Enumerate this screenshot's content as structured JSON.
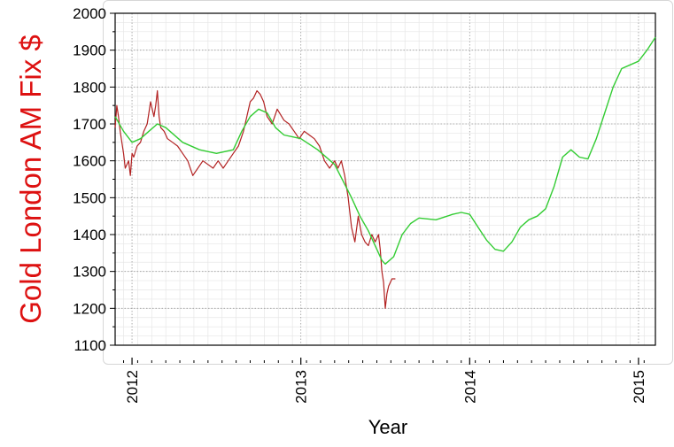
{
  "chart_data": {
    "type": "line",
    "xlabel": "Year",
    "ylabel": "Gold London AM Fix $",
    "xlim": [
      2011.9,
      2015.1
    ],
    "ylim": [
      1100,
      2000
    ],
    "yticks": [
      1100,
      1200,
      1300,
      1400,
      1500,
      1600,
      1700,
      1800,
      1900,
      2000
    ],
    "xticks": [
      2012,
      2013,
      2014,
      2015
    ],
    "xtick_labels": [
      "2012",
      "2013",
      "2014",
      "2015"
    ],
    "grid": true,
    "colors": {
      "actual": "#b22222",
      "forecast": "#33cc33",
      "ylabel": "#dd1111",
      "grid_major": "#9a9a9a",
      "grid_minor": "#e6e6e6",
      "card_border": "#d6d6d6"
    },
    "series": [
      {
        "key": "actual",
        "x": [
          2011.9,
          2011.91,
          2011.92,
          2011.93,
          2011.95,
          2011.96,
          2011.98,
          2011.99,
          2012.0,
          2012.01,
          2012.03,
          2012.05,
          2012.07,
          2012.09,
          2012.11,
          2012.13,
          2012.14,
          2012.15,
          2012.16,
          2012.17,
          2012.19,
          2012.21,
          2012.24,
          2012.27,
          2012.3,
          2012.33,
          2012.36,
          2012.39,
          2012.42,
          2012.45,
          2012.48,
          2012.51,
          2012.54,
          2012.57,
          2012.6,
          2012.63,
          2012.66,
          2012.68,
          2012.7,
          2012.72,
          2012.74,
          2012.76,
          2012.78,
          2012.8,
          2012.83,
          2012.86,
          2012.9,
          2012.93,
          2012.96,
          2012.99,
          2013.02,
          2013.05,
          2013.08,
          2013.11,
          2013.14,
          2013.17,
          2013.2,
          2013.22,
          2013.24,
          2013.26,
          2013.28,
          2013.3,
          2013.32,
          2013.34,
          2013.36,
          2013.38,
          2013.4,
          2013.42,
          2013.44,
          2013.46,
          2013.47,
          2013.48,
          2013.49,
          2013.5,
          2013.51,
          2013.52,
          2013.54,
          2013.56
        ],
        "y": [
          1690,
          1750,
          1720,
          1680,
          1620,
          1580,
          1600,
          1560,
          1620,
          1610,
          1640,
          1650,
          1680,
          1700,
          1760,
          1720,
          1750,
          1790,
          1720,
          1690,
          1680,
          1660,
          1650,
          1640,
          1620,
          1600,
          1560,
          1580,
          1600,
          1590,
          1580,
          1600,
          1580,
          1600,
          1620,
          1640,
          1680,
          1720,
          1760,
          1770,
          1790,
          1780,
          1760,
          1720,
          1700,
          1740,
          1710,
          1700,
          1680,
          1660,
          1680,
          1670,
          1660,
          1640,
          1600,
          1580,
          1600,
          1580,
          1600,
          1560,
          1500,
          1420,
          1380,
          1450,
          1400,
          1380,
          1370,
          1400,
          1380,
          1400,
          1360,
          1300,
          1270,
          1200,
          1240,
          1260,
          1280,
          1280
        ]
      },
      {
        "key": "forecast",
        "x": [
          2011.9,
          2011.95,
          2012.0,
          2012.05,
          2012.1,
          2012.15,
          2012.2,
          2012.3,
          2012.4,
          2012.5,
          2012.6,
          2012.65,
          2012.7,
          2012.75,
          2012.8,
          2012.85,
          2012.9,
          2012.95,
          2013.0,
          2013.1,
          2013.2,
          2013.3,
          2013.35,
          2013.4,
          2013.45,
          2013.48,
          2013.5,
          2013.55,
          2013.6,
          2013.65,
          2013.7,
          2013.8,
          2013.9,
          2013.95,
          2014.0,
          2014.05,
          2014.1,
          2014.15,
          2014.2,
          2014.25,
          2014.3,
          2014.35,
          2014.4,
          2014.45,
          2014.5,
          2014.55,
          2014.6,
          2014.65,
          2014.7,
          2014.75,
          2014.8,
          2014.85,
          2014.9,
          2014.95,
          2015.0,
          2015.05,
          2015.1
        ],
        "y": [
          1720,
          1680,
          1650,
          1660,
          1680,
          1700,
          1690,
          1650,
          1630,
          1620,
          1630,
          1680,
          1720,
          1740,
          1730,
          1690,
          1670,
          1665,
          1660,
          1630,
          1590,
          1500,
          1450,
          1410,
          1360,
          1330,
          1320,
          1340,
          1400,
          1430,
          1445,
          1440,
          1455,
          1460,
          1455,
          1420,
          1385,
          1360,
          1355,
          1380,
          1420,
          1440,
          1450,
          1470,
          1530,
          1610,
          1630,
          1610,
          1605,
          1660,
          1730,
          1800,
          1850,
          1860,
          1870,
          1900,
          1935
        ]
      }
    ]
  }
}
